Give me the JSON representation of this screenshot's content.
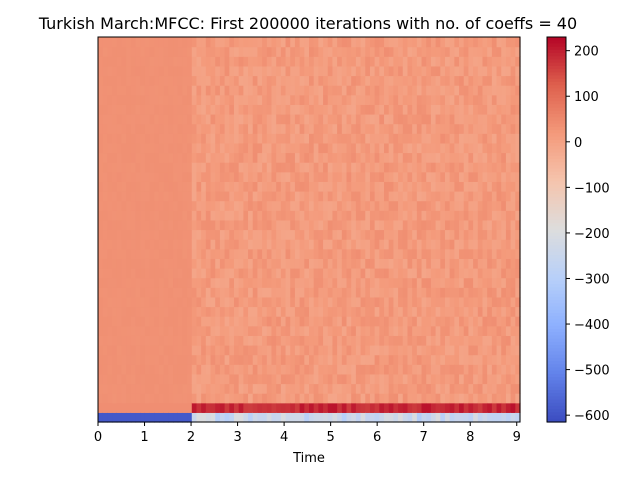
{
  "chart_data": {
    "type": "heatmap",
    "title": "Turkish March:MFCC: First 200000 iterations with no. of coeffs = 40",
    "xlabel": "Time",
    "ylabel": "",
    "x_range": [
      0,
      9.07
    ],
    "x_ticks": [
      0,
      1,
      2,
      3,
      4,
      5,
      6,
      7,
      8,
      9
    ],
    "x_tick_labels": [
      "0",
      "1",
      "2",
      "3",
      "4",
      "5",
      "6",
      "7",
      "8",
      "9"
    ],
    "n_coefficients": 40,
    "y_ticks_shown": false,
    "grid": false,
    "colormap": "coolwarm",
    "colorbar": {
      "range": [
        -615,
        230
      ],
      "ticks": [
        200,
        100,
        0,
        -100,
        -200,
        -300,
        -400,
        -500,
        -600
      ],
      "tick_labels": [
        "200",
        "100",
        "0",
        "−100",
        "−200",
        "−300",
        "−400",
        "−500",
        "−600"
      ]
    },
    "approx_values": {
      "coeff_0_silent_segment": -590,
      "coeff_0_after_onset": -250,
      "coeff_1_silent_segment": 40,
      "coeff_1_after_onset": 190,
      "coeffs_2_to_39_silent_segment": 35,
      "coeffs_2_to_39_after_onset": 15
    },
    "onset_time": 2.05
  },
  "colors": {
    "axis": "#000000",
    "background": "#ffffff"
  }
}
